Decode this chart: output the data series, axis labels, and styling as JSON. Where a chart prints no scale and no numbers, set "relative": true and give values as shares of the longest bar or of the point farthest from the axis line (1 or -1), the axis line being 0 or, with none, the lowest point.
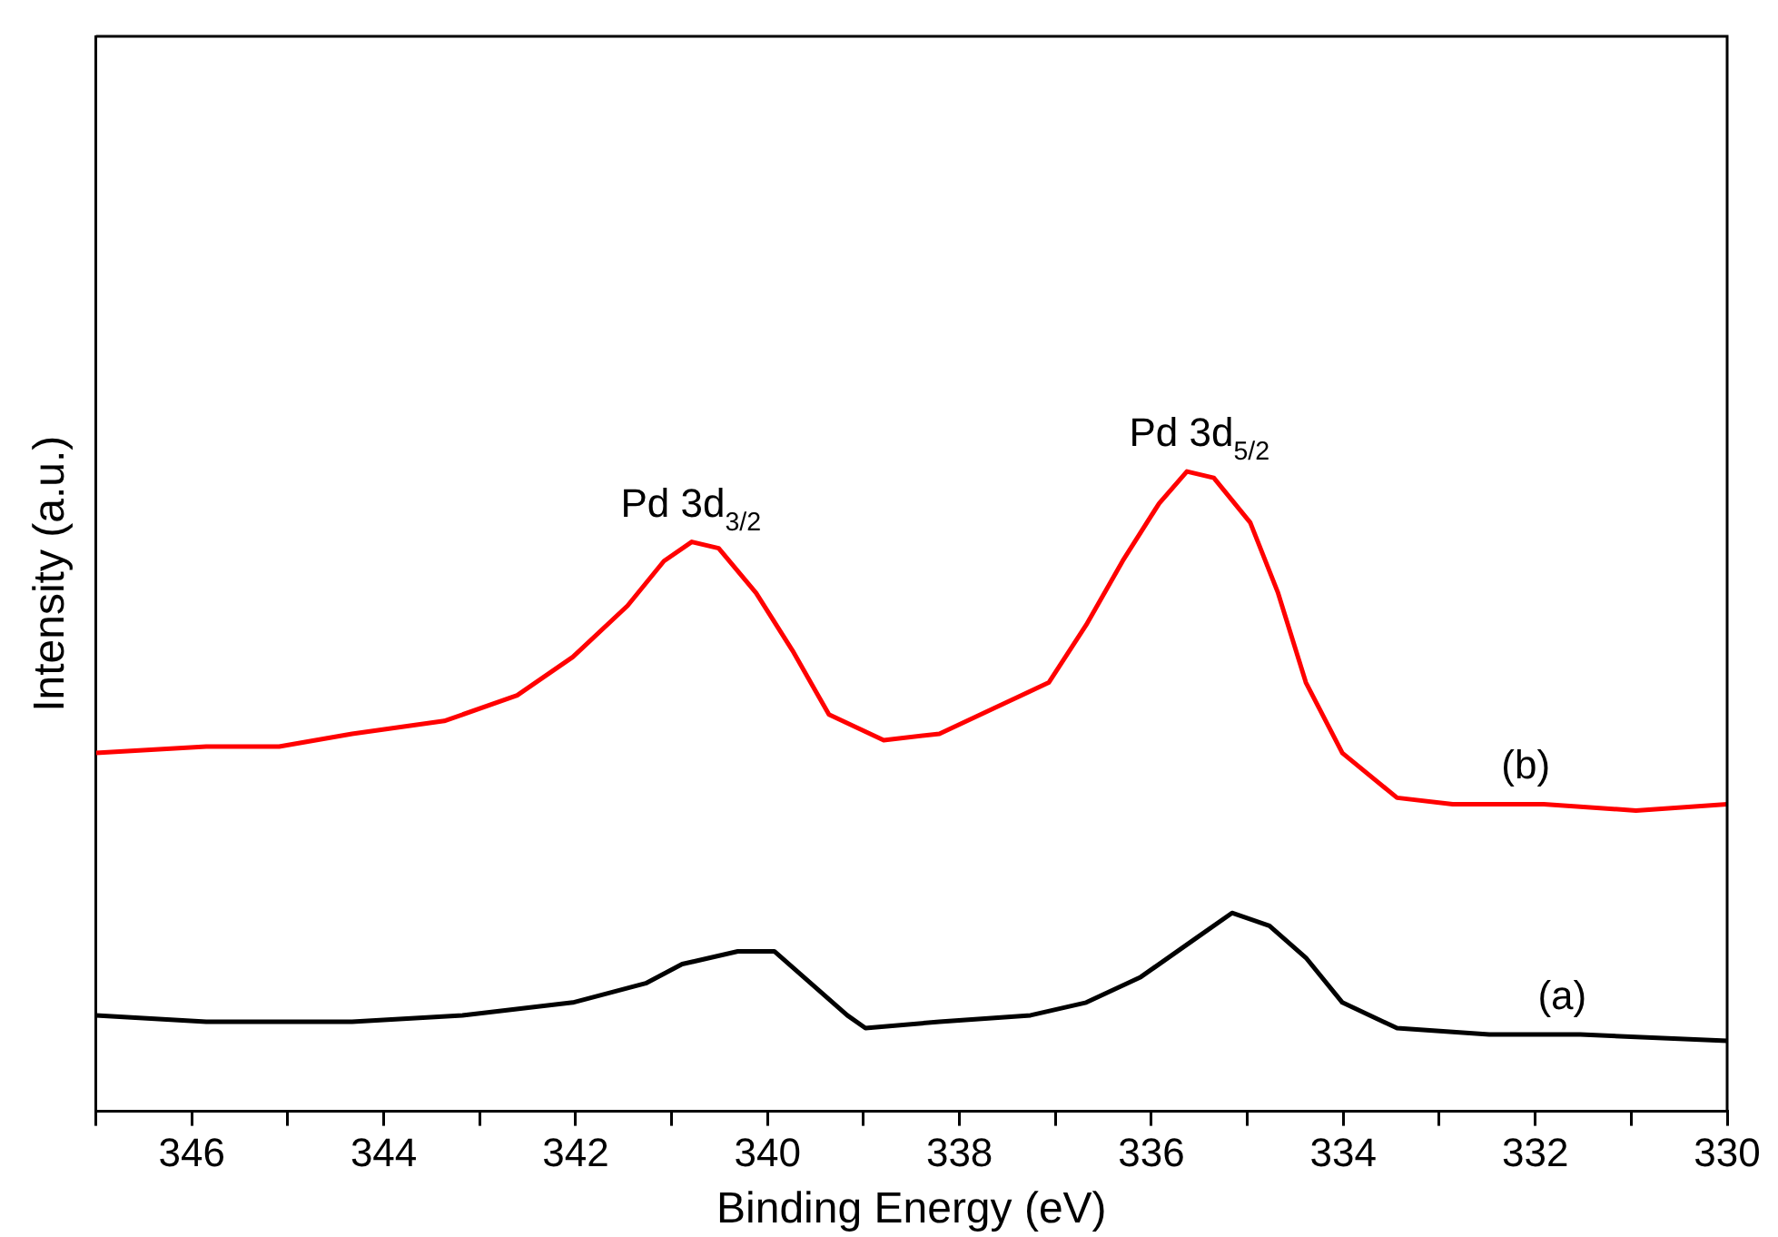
{
  "chart_data": {
    "type": "line",
    "xlabel": "Binding Energy (eV)",
    "ylabel": "Intensity (a.u.)",
    "relative": true,
    "xlim": [
      347,
      330
    ],
    "xticks": [
      {
        "value": 347,
        "label": null
      },
      346,
      {
        "value": 345,
        "label": null
      },
      344,
      {
        "value": 343,
        "label": null
      },
      342,
      {
        "value": 341,
        "label": null
      },
      340,
      {
        "value": 339,
        "label": null
      },
      338,
      {
        "value": 337,
        "label": null
      },
      336,
      {
        "value": 335,
        "label": null
      },
      334,
      {
        "value": 333,
        "label": null
      },
      332,
      {
        "value": 331,
        "label": null
      },
      330
    ],
    "grid": false,
    "legend": false,
    "marker": "none",
    "line_style": "solid",
    "annotations": [
      {
        "text": "Pd 3d$_{3/2}$",
        "x": 340.8,
        "y": 0.89
      },
      {
        "text": "Pd 3d$_{5/2}$",
        "x": 335.5,
        "y": 1
      }
    ],
    "series": [
      {
        "name": "(a)",
        "color": "#000000",
        "x": [
          347,
          345.85,
          344.33,
          343.18,
          342.03,
          341.27,
          340.89,
          340.31,
          339.93,
          339.55,
          339.17,
          338.98,
          338.21,
          337.26,
          336.68,
          336.11,
          335.54,
          335.16,
          334.77,
          334.39,
          334.01,
          333.44,
          332.48,
          331.53,
          330
        ],
        "values": [
          0.15,
          0.14,
          0.14,
          0.15,
          0.17,
          0.2,
          0.23,
          0.25,
          0.25,
          0.2,
          0.15,
          0.13,
          0.14,
          0.15,
          0.17,
          0.21,
          0.27,
          0.31,
          0.29,
          0.24,
          0.17,
          0.13,
          0.12,
          0.12,
          0.11
        ]
      },
      {
        "name": "(b)",
        "color": "#ff0000",
        "x": [
          347,
          345.85,
          345.09,
          344.33,
          343.37,
          342.61,
          342.03,
          341.46,
          341.08,
          340.79,
          340.51,
          340.12,
          339.74,
          339.36,
          338.79,
          338.21,
          337.64,
          337.07,
          336.68,
          336.3,
          335.92,
          335.63,
          335.35,
          334.97,
          334.68,
          334.39,
          334.01,
          333.44,
          332.86,
          331.91,
          330.95,
          330
        ],
        "values": [
          0.56,
          0.57,
          0.57,
          0.59,
          0.61,
          0.65,
          0.71,
          0.79,
          0.86,
          0.89,
          0.88,
          0.81,
          0.72,
          0.62,
          0.58,
          0.59,
          0.63,
          0.67,
          0.76,
          0.86,
          0.95,
          1,
          0.99,
          0.92,
          0.81,
          0.67,
          0.56,
          0.49,
          0.48,
          0.48,
          0.47,
          0.48
        ]
      }
    ]
  }
}
